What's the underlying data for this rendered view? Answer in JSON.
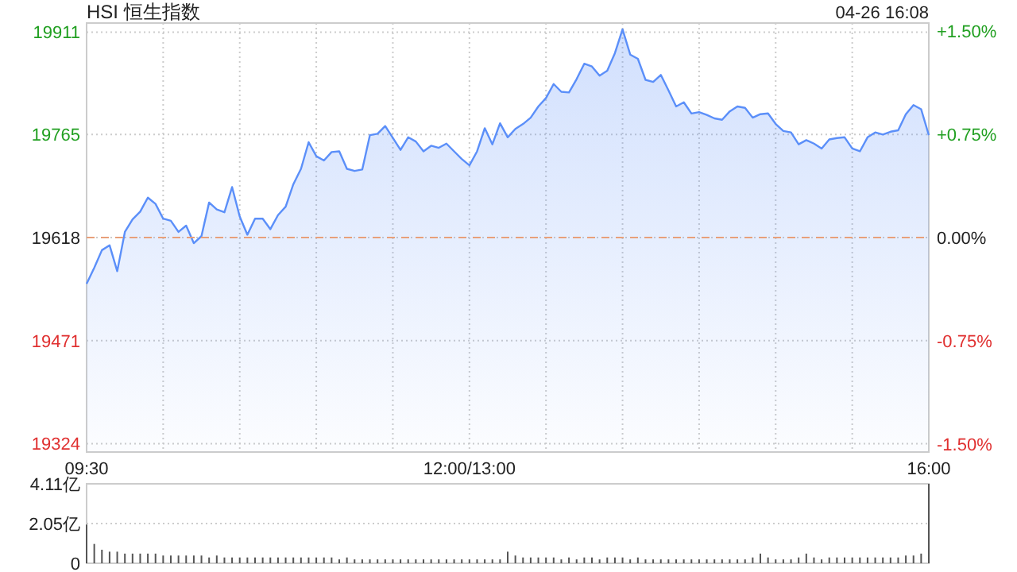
{
  "chart_data": [
    {
      "type": "area",
      "title": "HSI 恒生指数",
      "annotations": [
        "04-26 16:08"
      ],
      "categories": [
        "09:30",
        null,
        null,
        null,
        null,
        null,
        null,
        null,
        null,
        null,
        null,
        null,
        null,
        null,
        null,
        null,
        null,
        null,
        null,
        null,
        null,
        null,
        null,
        null,
        null,
        null,
        null,
        null,
        null,
        null,
        null,
        null,
        null,
        null,
        null,
        null,
        null,
        null,
        null,
        null,
        null,
        null,
        null,
        null,
        null,
        null,
        null,
        null,
        null,
        null,
        "12:00/13:00",
        null,
        null,
        null,
        null,
        null,
        null,
        null,
        null,
        null,
        null,
        null,
        null,
        null,
        null,
        null,
        null,
        null,
        null,
        null,
        null,
        null,
        null,
        null,
        null,
        null,
        null,
        null,
        null,
        null,
        null,
        null,
        null,
        null,
        null,
        null,
        null,
        null,
        null,
        null,
        null,
        null,
        null,
        null,
        null,
        null,
        null,
        null,
        null,
        null,
        null,
        null,
        null,
        null,
        null,
        null,
        null,
        null,
        null,
        null,
        "16:00"
      ],
      "ylim": [
        19312,
        19924
      ],
      "yticks": [
        19324,
        19471,
        19618,
        19765,
        19911
      ],
      "y2lim": [
        -1.56,
        1.56
      ],
      "y2ticks": [
        {
          "value": -1.5,
          "label": "-1.50%"
        },
        {
          "value": -0.75,
          "label": "-0.75%"
        },
        {
          "value": 0,
          "label": "0.00%"
        },
        {
          "value": 0.75,
          "label": "+0.75%"
        },
        {
          "value": 1.5,
          "label": "+1.50%"
        }
      ],
      "grid": true,
      "ref_lines": [
        {
          "axis": "y",
          "value": 19618,
          "color": "#e8a07a",
          "line_style": "dashed"
        }
      ],
      "series": [
        {
          "color": "#5b8ff9",
          "values": [
            19552,
            19575,
            19600,
            19607,
            19570,
            19626,
            19644,
            19655,
            19675,
            19666,
            19645,
            19642,
            19626,
            19635,
            19610,
            19620,
            19668,
            19658,
            19654,
            19690,
            19648,
            19622,
            19645,
            19645,
            19630,
            19650,
            19662,
            19694,
            19716,
            19754,
            19734,
            19728,
            19740,
            19741,
            19716,
            19713,
            19715,
            19764,
            19766,
            19777,
            19760,
            19743,
            19761,
            19755,
            19741,
            19749,
            19746,
            19752,
            19741,
            19730,
            19721,
            19741,
            19774,
            19751,
            19781,
            19761,
            19773,
            19780,
            19789,
            19805,
            19817,
            19837,
            19826,
            19825,
            19844,
            19866,
            19862,
            19849,
            19856,
            19881,
            19915,
            19879,
            19873,
            19843,
            19840,
            19850,
            19828,
            19805,
            19811,
            19795,
            19797,
            19793,
            19788,
            19786,
            19798,
            19805,
            19803,
            19789,
            19794,
            19795,
            19780,
            19770,
            19768,
            19751,
            19757,
            19752,
            19745,
            19758,
            19760,
            19761,
            19745,
            19741,
            19761,
            19768,
            19765,
            19769,
            19771,
            19794,
            19807,
            19801,
            19764
          ]
        }
      ]
    },
    {
      "type": "bar",
      "tick_labels": "y",
      "grid": "y",
      "categories": [
        null,
        null,
        null,
        null,
        null,
        null,
        null,
        null,
        null,
        null,
        null,
        null,
        null,
        null,
        null,
        null,
        null,
        null,
        null,
        null,
        null,
        null,
        null,
        null,
        null,
        null,
        null,
        null,
        null,
        null,
        null,
        null,
        null,
        null,
        null,
        null,
        null,
        null,
        null,
        null,
        null,
        null,
        null,
        null,
        null,
        null,
        null,
        null,
        null,
        null,
        null,
        null,
        null,
        null,
        null,
        null,
        null,
        null,
        null,
        null,
        null,
        null,
        null,
        null,
        null,
        null,
        null,
        null,
        null,
        null,
        null,
        null,
        null,
        null,
        null,
        null,
        null,
        null,
        null,
        null,
        null,
        null,
        null,
        null,
        null,
        null,
        null,
        null,
        null,
        null,
        null,
        null,
        null,
        null,
        null,
        null,
        null,
        null,
        null,
        null,
        null,
        null,
        null,
        null,
        null,
        null,
        null,
        null,
        null,
        null,
        null
      ],
      "ylim": [
        0,
        4.11
      ],
      "yticks": [
        0,
        {
          "value": 2.05,
          "label": "2.05亿"
        },
        {
          "value": 4.11,
          "label": "4.11亿"
        }
      ],
      "series": [
        {
          "color": "#555555",
          "values": [
            2.0,
            1.0,
            0.7,
            0.6,
            0.6,
            0.5,
            0.5,
            0.5,
            0.5,
            0.5,
            0.4,
            0.4,
            0.4,
            0.4,
            0.4,
            0.4,
            0.3,
            0.4,
            0.3,
            0.3,
            0.3,
            0.3,
            0.3,
            0.3,
            0.3,
            0.3,
            0.3,
            0.3,
            0.3,
            0.3,
            0.3,
            0.3,
            0.3,
            0.2,
            0.3,
            0.2,
            0.2,
            0.2,
            0.2,
            0.2,
            0.2,
            0.2,
            0.2,
            0.2,
            0.2,
            0.2,
            0.2,
            0.2,
            0.2,
            0.2,
            0.2,
            0.2,
            0.2,
            0.2,
            0.2,
            0.6,
            0.4,
            0.3,
            0.3,
            0.3,
            0.3,
            0.3,
            0.2,
            0.3,
            0.2,
            0.3,
            0.3,
            0.2,
            0.3,
            0.3,
            0.3,
            0.2,
            0.3,
            0.2,
            0.2,
            0.2,
            0.2,
            0.2,
            0.2,
            0.2,
            0.2,
            0.2,
            0.2,
            0.2,
            0.2,
            0.2,
            0.2,
            0.3,
            0.5,
            0.3,
            0.2,
            0.2,
            0.2,
            0.3,
            0.5,
            0.3,
            0.2,
            0.3,
            0.3,
            0.3,
            0.3,
            0.3,
            0.3,
            0.3,
            0.3,
            0.3,
            0.3,
            0.4,
            0.4,
            0.5,
            4.11
          ]
        }
      ]
    }
  ]
}
